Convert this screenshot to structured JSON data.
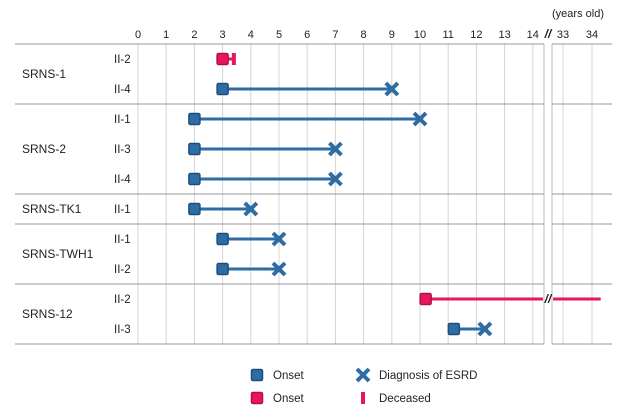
{
  "chart_data": {
    "type": "timeline",
    "unit_label": "(years old)",
    "x_ticks": [
      0,
      1,
      2,
      3,
      4,
      5,
      6,
      7,
      8,
      9,
      10,
      11,
      12,
      13,
      14,
      33,
      34
    ],
    "x_break": {
      "after": 14,
      "before": 33
    },
    "colors": {
      "blue": "#2e6ca4",
      "blue_dark": "#1d4f7c",
      "pink": "#e8175d"
    },
    "families": [
      {
        "name": "SRNS-1",
        "individuals": [
          {
            "id": "II-2",
            "onset": 3,
            "end": 3.4,
            "end_type": "deceased",
            "color": "pink"
          },
          {
            "id": "II-4",
            "onset": 3,
            "end": 9,
            "end_type": "esrd",
            "color": "blue"
          }
        ]
      },
      {
        "name": "SRNS-2",
        "individuals": [
          {
            "id": "II-1",
            "onset": 2,
            "end": 10,
            "end_type": "esrd",
            "color": "blue"
          },
          {
            "id": "II-3",
            "onset": 2,
            "end": 7,
            "end_type": "esrd",
            "color": "blue"
          },
          {
            "id": "II-4",
            "onset": 2,
            "end": 7,
            "end_type": "esrd",
            "color": "blue"
          }
        ]
      },
      {
        "name": "SRNS-TK1",
        "individuals": [
          {
            "id": "II-1",
            "onset": 2,
            "end": 4,
            "end_type": "esrd",
            "color": "blue"
          }
        ]
      },
      {
        "name": "SRNS-TWH1",
        "individuals": [
          {
            "id": "II-1",
            "onset": 3,
            "end": 5,
            "end_type": "esrd",
            "color": "blue"
          },
          {
            "id": "II-2",
            "onset": 3,
            "end": 5,
            "end_type": "esrd",
            "color": "blue"
          }
        ]
      },
      {
        "name": "SRNS-12",
        "individuals": [
          {
            "id": "II-2",
            "onset": 10.2,
            "end": 34.3,
            "end_type": "none",
            "color": "pink"
          },
          {
            "id": "II-3",
            "onset": 11.2,
            "end": 12.3,
            "end_type": "esrd",
            "color": "blue"
          }
        ]
      }
    ],
    "legend": [
      {
        "marker": "onset",
        "color": "blue",
        "label": "Onset"
      },
      {
        "marker": "esrd",
        "color": "blue",
        "label": "Diagnosis of ESRD"
      },
      {
        "marker": "onset",
        "color": "pink",
        "label": "Onset"
      },
      {
        "marker": "deceased",
        "color": "pink",
        "label": "Deceased"
      }
    ]
  }
}
